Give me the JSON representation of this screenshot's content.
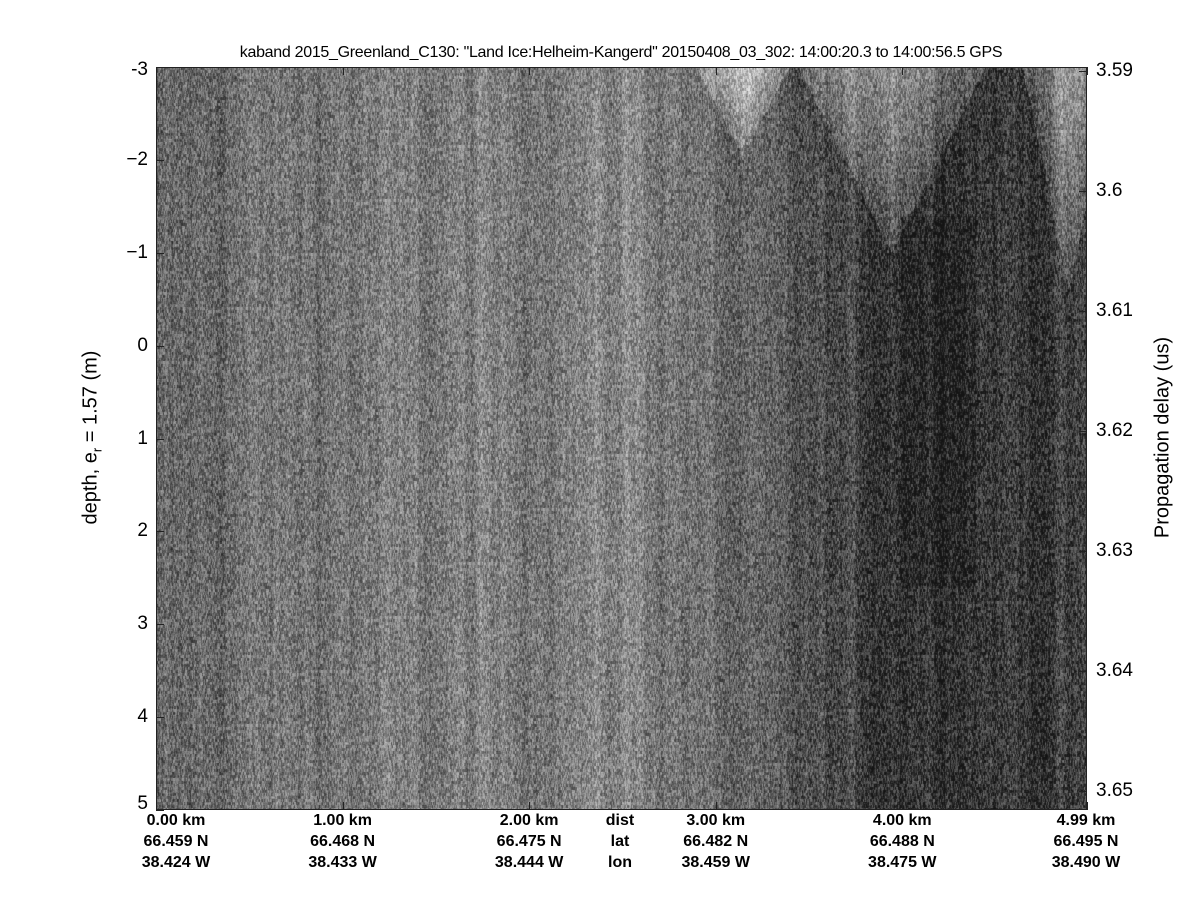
{
  "chart_data": {
    "type": "heatmap",
    "title": "kaband 2015_Greenland_C130: \"Land Ice:Helheim-Kangerd\"  20150408_03_302: 14:00:20.3 to 14:00:56.5 GPS",
    "colormap": "grayscale",
    "ylabel_left": "depth, e",
    "ylabel_left_sub": "r",
    "ylabel_left_rest": " = 1.57 (m)",
    "ylabel_right": "Propagation delay (us)",
    "ylim_left": [
      -3,
      5
    ],
    "yticks_left": [
      "-3",
      "−2",
      "−1",
      "0",
      "1",
      "2",
      "3",
      "4",
      "5"
    ],
    "yticks_left_values": [
      -3,
      -2,
      -1,
      0,
      1,
      2,
      3,
      4,
      5
    ],
    "yticks_right": [
      "3.59",
      "3.6",
      "3.61",
      "3.62",
      "3.63",
      "3.64",
      "3.65"
    ],
    "yticks_right_values": [
      3.59,
      3.6,
      3.61,
      3.62,
      3.63,
      3.64,
      3.65
    ],
    "xlim_km": [
      0,
      4.99
    ],
    "x_rows": {
      "dist": {
        "label": "dist",
        "values": [
          "0.00 km",
          "1.00 km",
          "2.00 km",
          "3.00 km",
          "4.00 km",
          "4.99 km"
        ]
      },
      "lat": {
        "label": "lat",
        "values": [
          "66.459 N",
          "66.468 N",
          "66.475 N",
          "66.482 N",
          "66.488 N",
          "66.495 N"
        ]
      },
      "lon": {
        "label": "lon",
        "values": [
          "38.424 W",
          "38.433 W",
          "38.444 W",
          "38.459 W",
          "38.475 W",
          "38.490 W"
        ]
      }
    },
    "xtick_km": [
      0,
      1,
      2,
      3,
      4,
      4.99
    ]
  }
}
